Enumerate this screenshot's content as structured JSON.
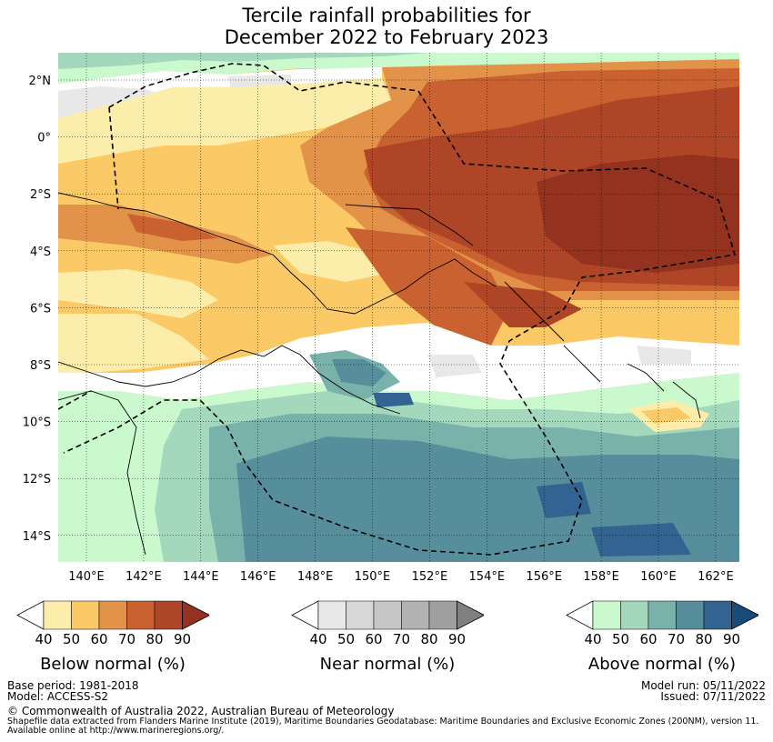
{
  "title_line1": "Tercile rainfall probabilities for",
  "title_line2": "December 2022 to February 2023",
  "lat_labels": [
    "2°N",
    "0°",
    "2°S",
    "4°S",
    "6°S",
    "8°S",
    "10°S",
    "12°S",
    "14°S"
  ],
  "lon_labels": [
    "140°E",
    "142°E",
    "144°E",
    "146°E",
    "148°E",
    "150°E",
    "152°E",
    "154°E",
    "156°E",
    "158°E",
    "160°E",
    "162°E"
  ],
  "legends": [
    {
      "title": "Below normal (%)",
      "ticks": [
        "40",
        "50",
        "60",
        "70",
        "80",
        "90"
      ],
      "colors": [
        "#ffffff",
        "#fdedaa",
        "#fbc965",
        "#e3924a",
        "#c96230",
        "#ad4526",
        "#93331f"
      ]
    },
    {
      "title": "Near normal (%)",
      "ticks": [
        "40",
        "50",
        "60",
        "70",
        "80",
        "90"
      ],
      "colors": [
        "#ffffff",
        "#e8e8e8",
        "#d7d7d7",
        "#c6c6c6",
        "#b2b2b2",
        "#9f9f9f",
        "#808080"
      ]
    },
    {
      "title": "Above normal (%)",
      "ticks": [
        "40",
        "50",
        "60",
        "70",
        "80",
        "90"
      ],
      "colors": [
        "#ffffff",
        "#c9f9cd",
        "#a3d8bd",
        "#79b2ab",
        "#578e9c",
        "#336390",
        "#174b7a"
      ]
    }
  ],
  "footer": {
    "base_period": "Base period: 1981-2018",
    "model": "Model: ACCESS-S2",
    "model_run": "Model run: 05/11/2022",
    "issued": "Issued: 07/11/2022",
    "copyright": "© Commonwealth of Australia 2022, Australian Bureau of Meteorology",
    "source1": "Shapefile data extracted from Flanders Marine Institute (2019), Maritime Boundaries Geodatabase: Maritime Boundaries and Exclusive Economic Zones (200NM), version 11.",
    "source2": "Available online at http://www.marineregions.org/."
  }
}
